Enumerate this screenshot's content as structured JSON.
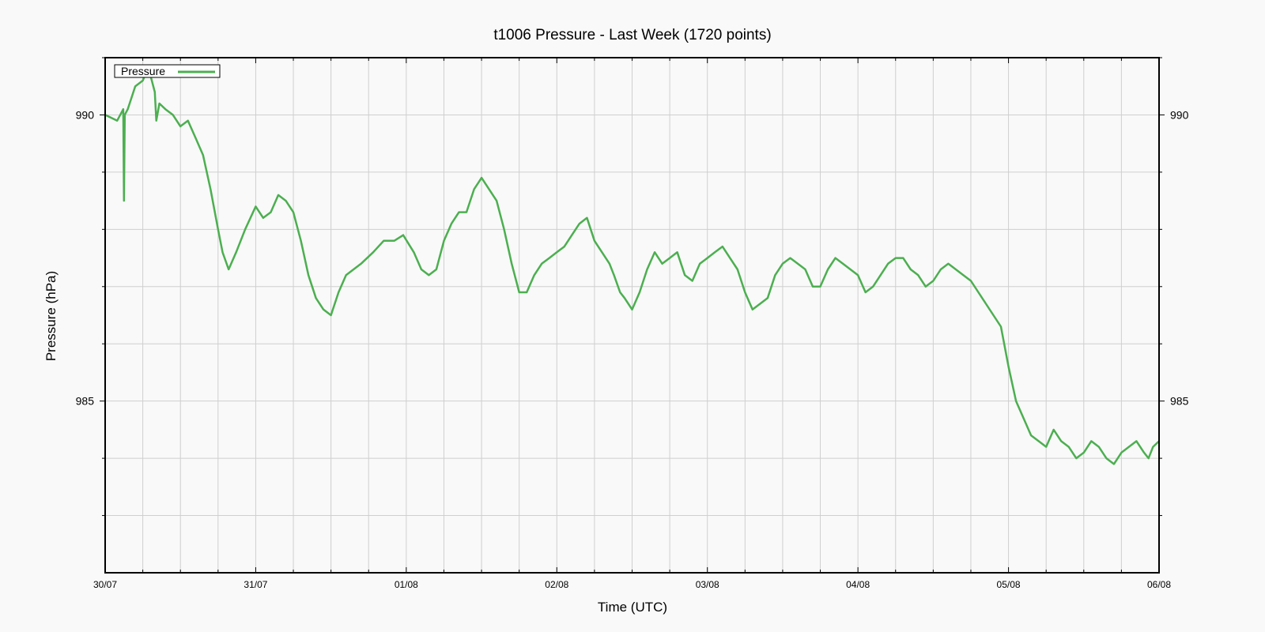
{
  "chart_data": {
    "type": "line",
    "title": "t1006 Pressure - Last Week (1720 points)",
    "xlabel": "Time (UTC)",
    "ylabel": "Pressure (hPa)",
    "x_tick_labels": [
      "30/07",
      "31/07",
      "01/08",
      "02/08",
      "03/08",
      "04/08",
      "05/08",
      "06/08"
    ],
    "x_unit": "days",
    "xlim": [
      0,
      7
    ],
    "ylim": [
      982,
      991
    ],
    "y_major_ticks": [
      985,
      990
    ],
    "y_minor_ticks": [
      983,
      984,
      986,
      987,
      988,
      989,
      991
    ],
    "x_minor_ticks_per_day": 4,
    "grid": true,
    "legend": "top-left",
    "series": [
      {
        "name": "Pressure",
        "color": "#4caf50",
        "x": [
          0,
          0.08,
          0.12,
          0.125,
          0.13,
          0.15,
          0.2,
          0.25,
          0.28,
          0.3,
          0.33,
          0.34,
          0.36,
          0.4,
          0.45,
          0.5,
          0.55,
          0.6,
          0.65,
          0.7,
          0.75,
          0.78,
          0.82,
          0.87,
          0.93,
          1.0,
          1.05,
          1.1,
          1.15,
          1.2,
          1.25,
          1.3,
          1.35,
          1.4,
          1.45,
          1.5,
          1.55,
          1.6,
          1.65,
          1.7,
          1.78,
          1.85,
          1.92,
          1.98,
          2.05,
          2.1,
          2.15,
          2.2,
          2.25,
          2.3,
          2.35,
          2.4,
          2.45,
          2.5,
          2.55,
          2.6,
          2.65,
          2.7,
          2.75,
          2.8,
          2.85,
          2.9,
          2.95,
          3.0,
          3.05,
          3.1,
          3.15,
          3.2,
          3.25,
          3.3,
          3.35,
          3.38,
          3.42,
          3.45,
          3.5,
          3.55,
          3.6,
          3.65,
          3.7,
          3.75,
          3.8,
          3.85,
          3.9,
          3.95,
          4.0,
          4.05,
          4.1,
          4.15,
          4.2,
          4.25,
          4.3,
          4.35,
          4.4,
          4.45,
          4.5,
          4.55,
          4.6,
          4.65,
          4.7,
          4.75,
          4.8,
          4.85,
          4.9,
          4.95,
          5.0,
          5.05,
          5.1,
          5.15,
          5.2,
          5.25,
          5.3,
          5.35,
          5.4,
          5.45,
          5.5,
          5.55,
          5.6,
          5.65,
          5.7,
          5.75,
          5.8,
          5.85,
          5.9,
          5.95,
          6.0,
          6.05,
          6.1,
          6.15,
          6.2,
          6.25,
          6.3,
          6.35,
          6.4,
          6.45,
          6.5,
          6.55,
          6.6,
          6.65,
          6.7,
          6.75,
          6.8,
          6.85,
          6.9,
          6.93,
          6.96,
          7.0
        ],
        "y": [
          990.0,
          989.9,
          990.1,
          988.5,
          990.0,
          990.1,
          990.5,
          990.6,
          990.8,
          990.7,
          990.4,
          989.9,
          990.2,
          990.1,
          990.0,
          989.8,
          989.9,
          989.6,
          989.3,
          988.7,
          988.0,
          987.6,
          987.3,
          987.6,
          988.0,
          988.4,
          988.2,
          988.3,
          988.6,
          988.5,
          988.3,
          987.8,
          987.2,
          986.8,
          986.6,
          986.5,
          986.9,
          987.2,
          987.3,
          987.4,
          987.6,
          987.8,
          987.8,
          987.9,
          987.6,
          987.3,
          987.2,
          987.3,
          987.8,
          988.1,
          988.3,
          988.3,
          988.7,
          988.9,
          988.7,
          988.5,
          988.0,
          987.4,
          986.9,
          986.9,
          987.2,
          987.4,
          987.5,
          987.6,
          987.7,
          987.9,
          988.1,
          988.2,
          987.8,
          987.6,
          987.4,
          987.2,
          986.9,
          986.8,
          986.6,
          986.9,
          987.3,
          987.6,
          987.4,
          987.5,
          987.6,
          987.2,
          987.1,
          987.4,
          987.5,
          987.6,
          987.7,
          987.5,
          987.3,
          986.9,
          986.6,
          986.7,
          986.8,
          987.2,
          987.4,
          987.5,
          987.4,
          987.3,
          987.0,
          987.0,
          987.3,
          987.5,
          987.4,
          987.3,
          987.2,
          986.9,
          987.0,
          987.2,
          987.4,
          987.5,
          987.5,
          987.3,
          987.2,
          987.0,
          987.1,
          987.3,
          987.4,
          987.3,
          987.2,
          987.1,
          986.9,
          986.7,
          986.5,
          986.3,
          985.6,
          985.0,
          984.7,
          984.4,
          984.3,
          984.2,
          984.5,
          984.3,
          984.2,
          984.0,
          984.1,
          984.3,
          984.2,
          984.0,
          983.9,
          984.1,
          984.2,
          984.3,
          984.1,
          984.0,
          984.2,
          984.3
        ]
      }
    ]
  }
}
